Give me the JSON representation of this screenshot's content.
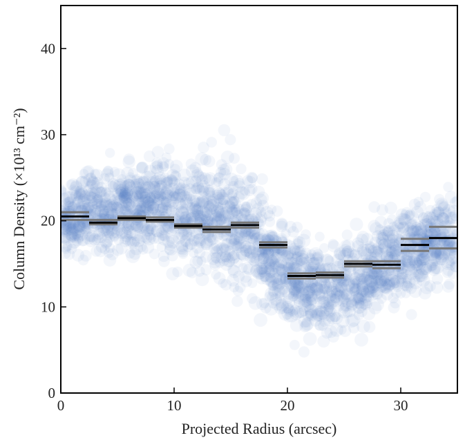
{
  "chart_data": {
    "type": "scatter",
    "title": "",
    "xlabel": "Projected Radius (arcsec)",
    "ylabel": "Column Density (×10¹³ cm⁻²)",
    "xlim": [
      0,
      35
    ],
    "ylim": [
      0,
      45
    ],
    "xticks": [
      0,
      10,
      20,
      30
    ],
    "yticks": [
      0,
      10,
      20,
      30,
      40
    ],
    "grid": false,
    "scatter_color": "#5b86c6",
    "scatter_note_trend": [
      [
        0,
        20
      ],
      [
        3,
        21
      ],
      [
        6,
        21.5
      ],
      [
        9,
        21.5
      ],
      [
        12,
        21
      ],
      [
        14,
        20.5
      ],
      [
        16,
        19
      ],
      [
        18,
        16.5
      ],
      [
        20,
        14
      ],
      [
        22,
        12.5
      ],
      [
        24,
        12
      ],
      [
        26,
        13
      ],
      [
        28,
        14.5
      ],
      [
        30,
        16
      ],
      [
        33,
        18
      ]
    ],
    "scatter_spread": [
      [
        0,
        3
      ],
      [
        3,
        3.5
      ],
      [
        6,
        4
      ],
      [
        9,
        4.5
      ],
      [
        12,
        5
      ],
      [
        14,
        5.5
      ],
      [
        16,
        5
      ],
      [
        18,
        4.5
      ],
      [
        20,
        4
      ],
      [
        22,
        4
      ],
      [
        24,
        4
      ],
      [
        26,
        4
      ],
      [
        28,
        4
      ],
      [
        30,
        4
      ],
      [
        33,
        4
      ]
    ],
    "bins": [
      {
        "x0": 0.0,
        "x1": 2.5,
        "median": 20.5,
        "lo": 20.1,
        "hi": 21.0
      },
      {
        "x0": 2.5,
        "x1": 5.0,
        "median": 19.8,
        "lo": 19.6,
        "hi": 20.1
      },
      {
        "x0": 5.0,
        "x1": 7.5,
        "median": 20.3,
        "lo": 20.1,
        "hi": 20.5
      },
      {
        "x0": 7.5,
        "x1": 10.0,
        "median": 20.1,
        "lo": 19.9,
        "hi": 20.4
      },
      {
        "x0": 10.0,
        "x1": 12.5,
        "median": 19.4,
        "lo": 19.2,
        "hi": 19.6
      },
      {
        "x0": 12.5,
        "x1": 15.0,
        "median": 19.0,
        "lo": 18.7,
        "hi": 19.3
      },
      {
        "x0": 15.0,
        "x1": 17.5,
        "median": 19.5,
        "lo": 19.2,
        "hi": 19.8
      },
      {
        "x0": 17.5,
        "x1": 20.0,
        "median": 17.2,
        "lo": 16.9,
        "hi": 17.5
      },
      {
        "x0": 20.0,
        "x1": 22.5,
        "median": 13.6,
        "lo": 13.3,
        "hi": 13.9
      },
      {
        "x0": 22.5,
        "x1": 25.0,
        "median": 13.7,
        "lo": 13.4,
        "hi": 14.0
      },
      {
        "x0": 25.0,
        "x1": 27.5,
        "median": 15.0,
        "lo": 14.7,
        "hi": 15.3
      },
      {
        "x0": 27.5,
        "x1": 30.0,
        "median": 14.9,
        "lo": 14.5,
        "hi": 15.3
      },
      {
        "x0": 30.0,
        "x1": 32.5,
        "median": 17.2,
        "lo": 16.5,
        "hi": 17.9
      },
      {
        "x0": 32.5,
        "x1": 35.0,
        "median": 18.0,
        "lo": 16.8,
        "hi": 19.3
      }
    ]
  }
}
